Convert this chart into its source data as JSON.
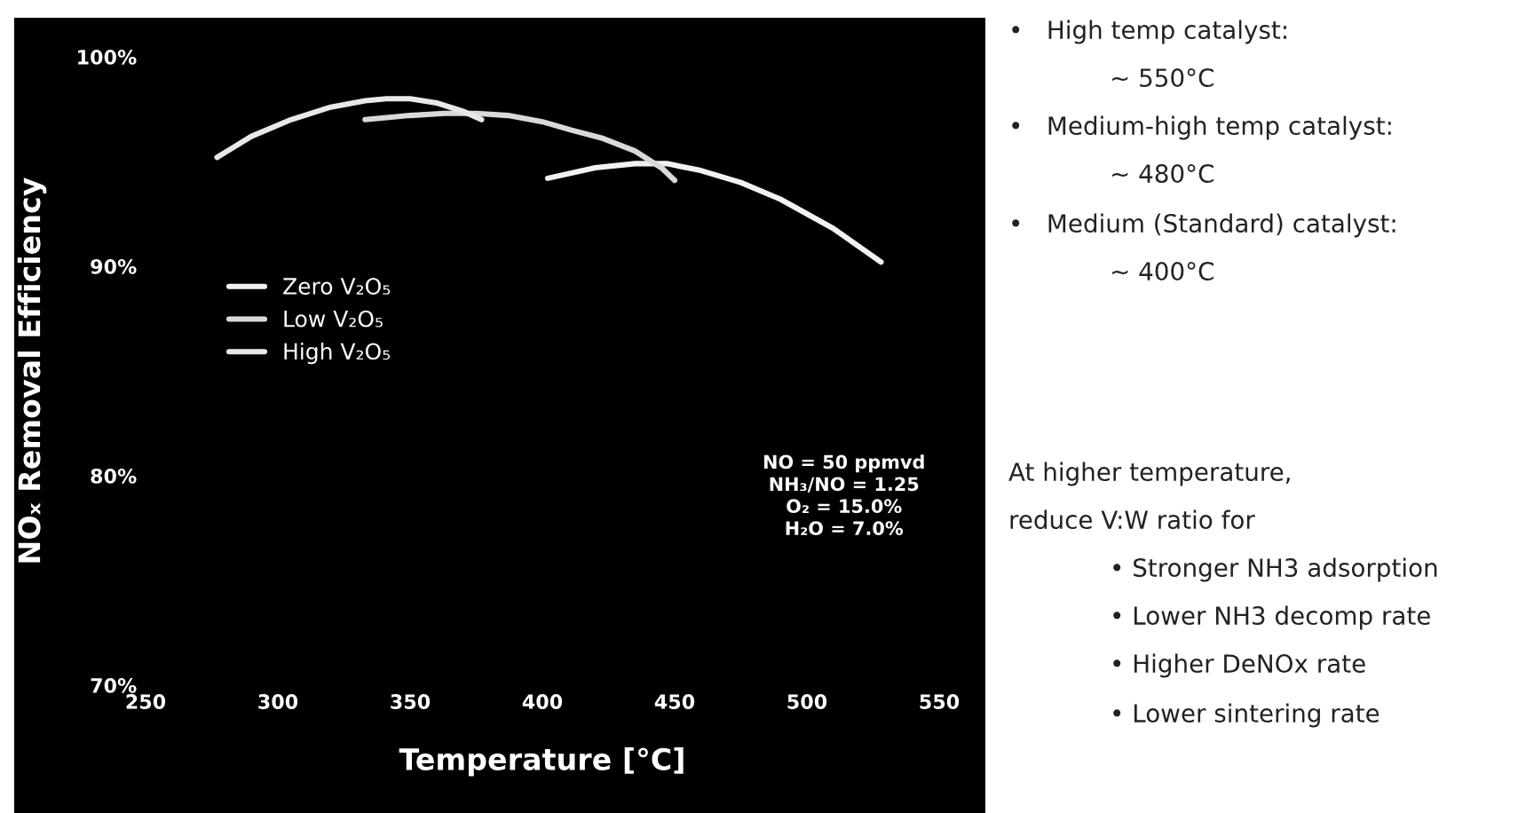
{
  "chart_data": {
    "type": "line",
    "xlabel": "Temperature [°C]",
    "ylabel": "NOₓ Removal Efficiency",
    "series": [
      {
        "name": "Zero V₂O₅",
        "color": "#f2f2f2",
        "x": [
          402,
          420,
          435,
          447,
          459,
          475,
          490,
          510,
          528
        ],
        "values": [
          94.2,
          94.7,
          94.9,
          94.9,
          94.6,
          94.0,
          93.2,
          91.8,
          90.2
        ]
      },
      {
        "name": "Low V₂O₅",
        "color": "#d9d9d9",
        "x": [
          333,
          350,
          363,
          375,
          387,
          400,
          411,
          423,
          435,
          445,
          450
        ],
        "values": [
          97.0,
          97.2,
          97.3,
          97.3,
          97.2,
          96.9,
          96.5,
          96.1,
          95.5,
          94.7,
          94.1
        ]
      },
      {
        "name": "High V₂O₅",
        "color": "#e8e8e8",
        "x": [
          277,
          290,
          305,
          320,
          333,
          341,
          350,
          360,
          370,
          377
        ],
        "values": [
          95.2,
          96.2,
          97.0,
          97.6,
          97.9,
          98.0,
          98.0,
          97.8,
          97.4,
          97.0
        ]
      }
    ],
    "xlim": [
      250,
      550
    ],
    "xticks": [
      250,
      300,
      350,
      400,
      450,
      500,
      550
    ],
    "ylim": [
      70,
      100
    ],
    "yticks": [
      {
        "value": 70,
        "label": "70%"
      },
      {
        "value": 80,
        "label": "80%"
      },
      {
        "value": 90,
        "label": "90%"
      },
      {
        "value": 100,
        "label": "100%"
      }
    ],
    "grid": false,
    "legend": "left",
    "marker": "none",
    "line_style": "solid",
    "annotations": [
      "NO = 50 ppmvd\nNH₃/NO = 1.25\nO₂ = 15.0%\nH₂O = 7.0%",
      "•   High temp catalyst:",
      "~ 550°C",
      "•   Medium-high temp catalyst:",
      "~ 480°C",
      "•   Medium (Standard) catalyst:",
      "~ 400°C",
      "At higher temperature,",
      "reduce V:W ratio for",
      "• Stronger NH3 adsorption",
      "• Lower NH3 decomp rate",
      "• Higher DeNOx rate",
      "• Lower sintering rate"
    ]
  }
}
